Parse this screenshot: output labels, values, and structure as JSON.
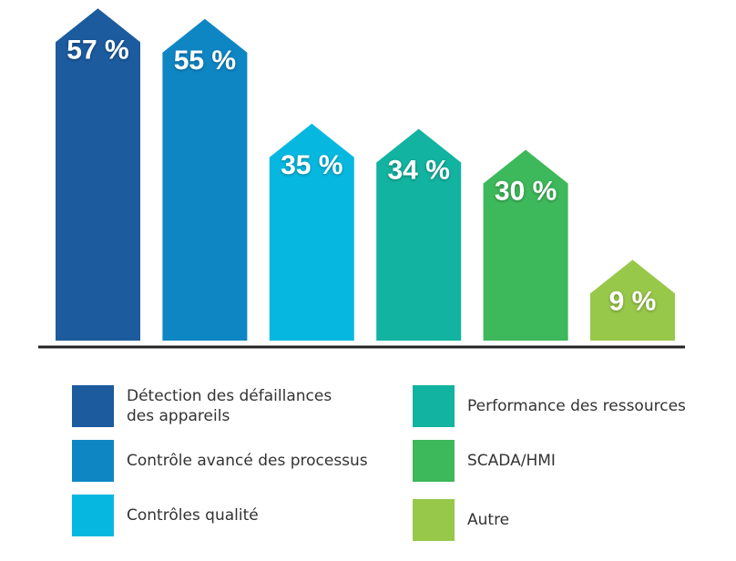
{
  "chart_data": {
    "type": "bar",
    "title": "",
    "xlabel": "",
    "ylabel": "",
    "ylim": [
      0,
      62
    ],
    "grid": false,
    "legend_placement": "bottom",
    "categories": [
      "Détection des défaillances des appareils",
      "Contrôle avancé des processus",
      "Contrôles qualité",
      "Performance des ressources",
      "SCADA/HMI",
      "Autre"
    ],
    "values": [
      57,
      55,
      35,
      34,
      30,
      9
    ],
    "data_labels": [
      "57 %",
      "55 %",
      "35 %",
      "34 %",
      "30 %",
      "9 %"
    ],
    "colors": [
      "#1b5b9e",
      "#0e86c4",
      "#06b8e0",
      "#12b3a0",
      "#3db85a",
      "#98c84a"
    ]
  },
  "legend": [
    {
      "label": "Détection des défaillances\ndes appareils",
      "color": "#1b5b9e"
    },
    {
      "label": "Contrôle avancé des processus",
      "color": "#0e86c4"
    },
    {
      "label": "Contrôles qualité",
      "color": "#06b8e0"
    },
    {
      "label": "Performance des ressources",
      "color": "#12b3a0"
    },
    {
      "label": "SCADA/HMI",
      "color": "#3db85a"
    },
    {
      "label": "Autre",
      "color": "#98c84a"
    }
  ]
}
